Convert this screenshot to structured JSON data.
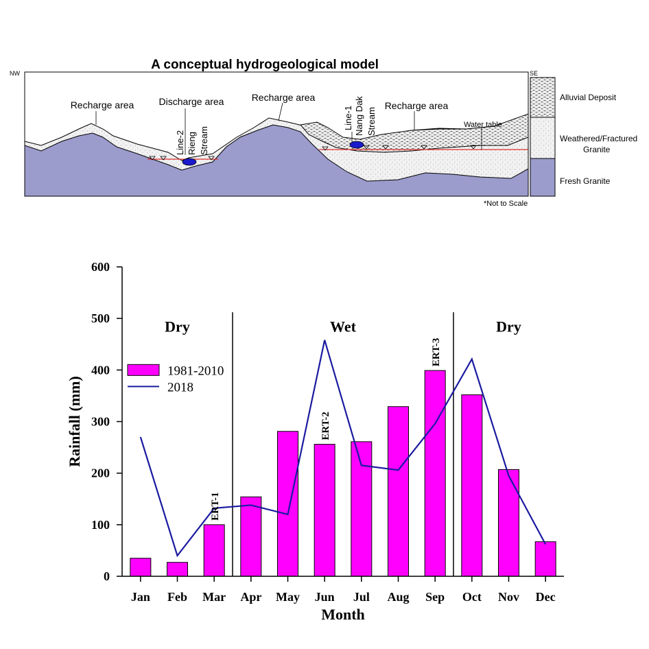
{
  "model": {
    "title": "A conceptual hydrogeological model",
    "nw": "NW",
    "se": "SE",
    "labels": {
      "recharge_1": "Recharge area",
      "discharge": "Discharge area",
      "recharge_2": "Recharge area",
      "recharge_3": "Recharge area",
      "water_table": "Water table",
      "line2": "Line-2",
      "rieng": "Rieng",
      "stream_1": "Stream",
      "line1": "Line-1",
      "nang_dak": "Nang Dak",
      "stream_2": "Stream"
    },
    "legend": {
      "alluvial": "Alluvial Deposit",
      "weathered_1": "Weathered/Fractured",
      "weathered_2": "Granite",
      "fresh": "Fresh Granite"
    },
    "note": "*Not to Scale",
    "colors": {
      "fresh_granite": "#9b9bcc",
      "weathered": "#f2f2f2",
      "alluvial": "#e6e6e6",
      "water_table": "#e03030",
      "stream": "#1a1acc"
    }
  },
  "chart_data": {
    "type": "bar",
    "xlabel": "Month",
    "ylabel": "Rainfall (mm)",
    "ylim": [
      0,
      600
    ],
    "yticks": [
      0,
      100,
      200,
      300,
      400,
      500,
      600
    ],
    "categories": [
      "Jan",
      "Feb",
      "Mar",
      "Apr",
      "May",
      "Jun",
      "Jul",
      "Aug",
      "Sep",
      "Oct",
      "Nov",
      "Dec"
    ],
    "series": [
      {
        "name": "1981-2010",
        "kind": "bar",
        "color": "#ff00ff",
        "values": [
          35,
          27,
          100,
          154,
          281,
          256,
          261,
          329,
          399,
          352,
          207,
          67
        ]
      },
      {
        "name": "2018",
        "kind": "line",
        "color": "#1a1aa0",
        "values": [
          270,
          40,
          132,
          138,
          120,
          458,
          215,
          206,
          296,
          421,
          195,
          62
        ]
      }
    ],
    "seasons": [
      {
        "label": "Dry"
      },
      {
        "label": "Wet"
      },
      {
        "label": "Dry"
      }
    ],
    "season_dividers_after": [
      "Mar",
      "Sep"
    ],
    "annotations": [
      {
        "text": "ERT-1",
        "month": "Mar"
      },
      {
        "text": "ERT-2",
        "month": "Jun"
      },
      {
        "text": "ERT-3",
        "month": "Sep"
      }
    ],
    "legend_position": "left",
    "grid": false
  }
}
